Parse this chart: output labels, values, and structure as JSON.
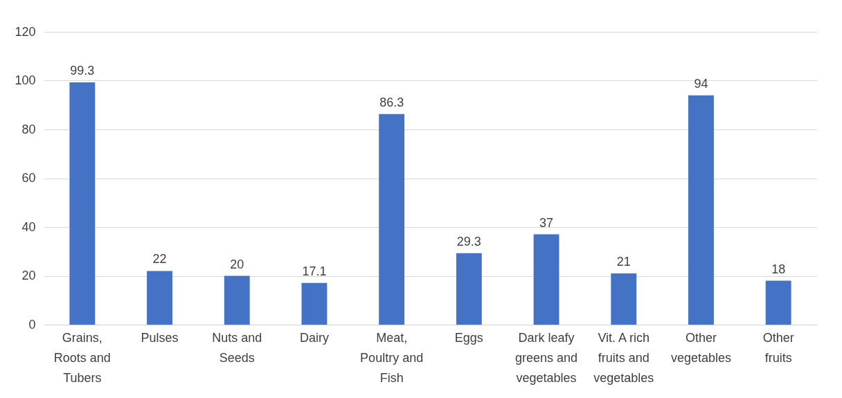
{
  "chart_data": {
    "type": "bar",
    "categories": [
      "Grains, Roots and Tubers",
      "Pulses",
      "Nuts and Seeds",
      "Dairy",
      "Meat, Poultry and Fish",
      "Eggs",
      "Dark leafy greens and vegetables",
      "Vit. A rich fruits and vegetables",
      "Other vegetables",
      "Other fruits"
    ],
    "values": [
      99.3,
      22,
      20,
      17.1,
      86.3,
      29.3,
      37,
      21,
      94,
      18
    ],
    "color": "#4472c4",
    "ylim": [
      0,
      120
    ],
    "yticks": [
      0,
      20,
      40,
      60,
      80,
      100,
      120
    ],
    "grid": "y",
    "data_labels": true
  }
}
